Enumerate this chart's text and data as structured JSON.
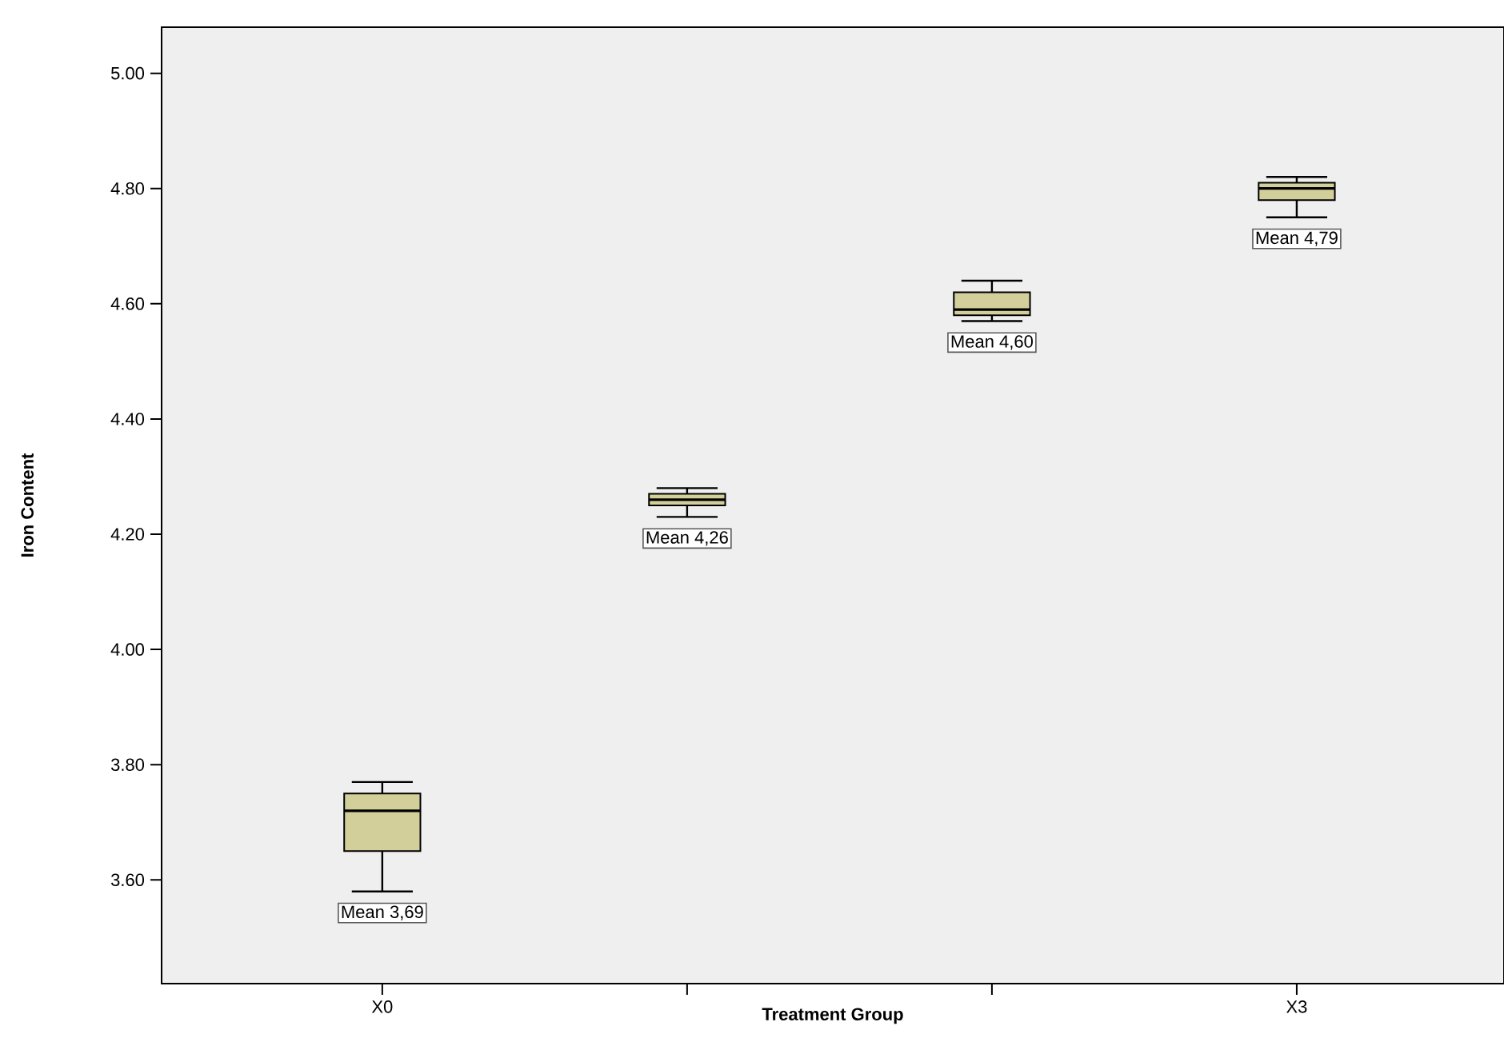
{
  "chart_data": {
    "type": "box",
    "xlabel": "Treatment Group",
    "ylabel": "Iron Content",
    "categories": [
      "X0",
      null,
      null,
      "X3"
    ],
    "color": "#d3cf9a",
    "boxes": [
      {
        "low": 3.58,
        "q1": 3.65,
        "median": 3.72,
        "q3": 3.75,
        "high": 3.77
      },
      {
        "low": 4.23,
        "q1": 4.25,
        "median": 4.26,
        "q3": 4.27,
        "high": 4.28
      },
      {
        "low": 4.57,
        "q1": 4.58,
        "median": 4.59,
        "q3": 4.62,
        "high": 4.64
      },
      {
        "low": 4.75,
        "q1": 4.78,
        "median": 4.8,
        "q3": 4.81,
        "high": 4.82
      }
    ],
    "annotations": [
      "Mean 3,69",
      "Mean 4,26",
      "Mean 4,60",
      "Mean 4,79"
    ],
    "ylim": [
      3.42,
      5.08
    ],
    "yticks": [
      {
        "value": 3.6,
        "label": "3.60"
      },
      {
        "value": 3.8,
        "label": "3.80"
      },
      {
        "value": 4.0,
        "label": "4.00"
      },
      {
        "value": 4.2,
        "label": "4.20"
      },
      {
        "value": 4.4,
        "label": "4.40"
      },
      {
        "value": 4.6,
        "label": "4.60"
      },
      {
        "value": 4.8,
        "label": "4.80"
      },
      {
        "value": 5.0,
        "label": "5.00"
      }
    ]
  }
}
